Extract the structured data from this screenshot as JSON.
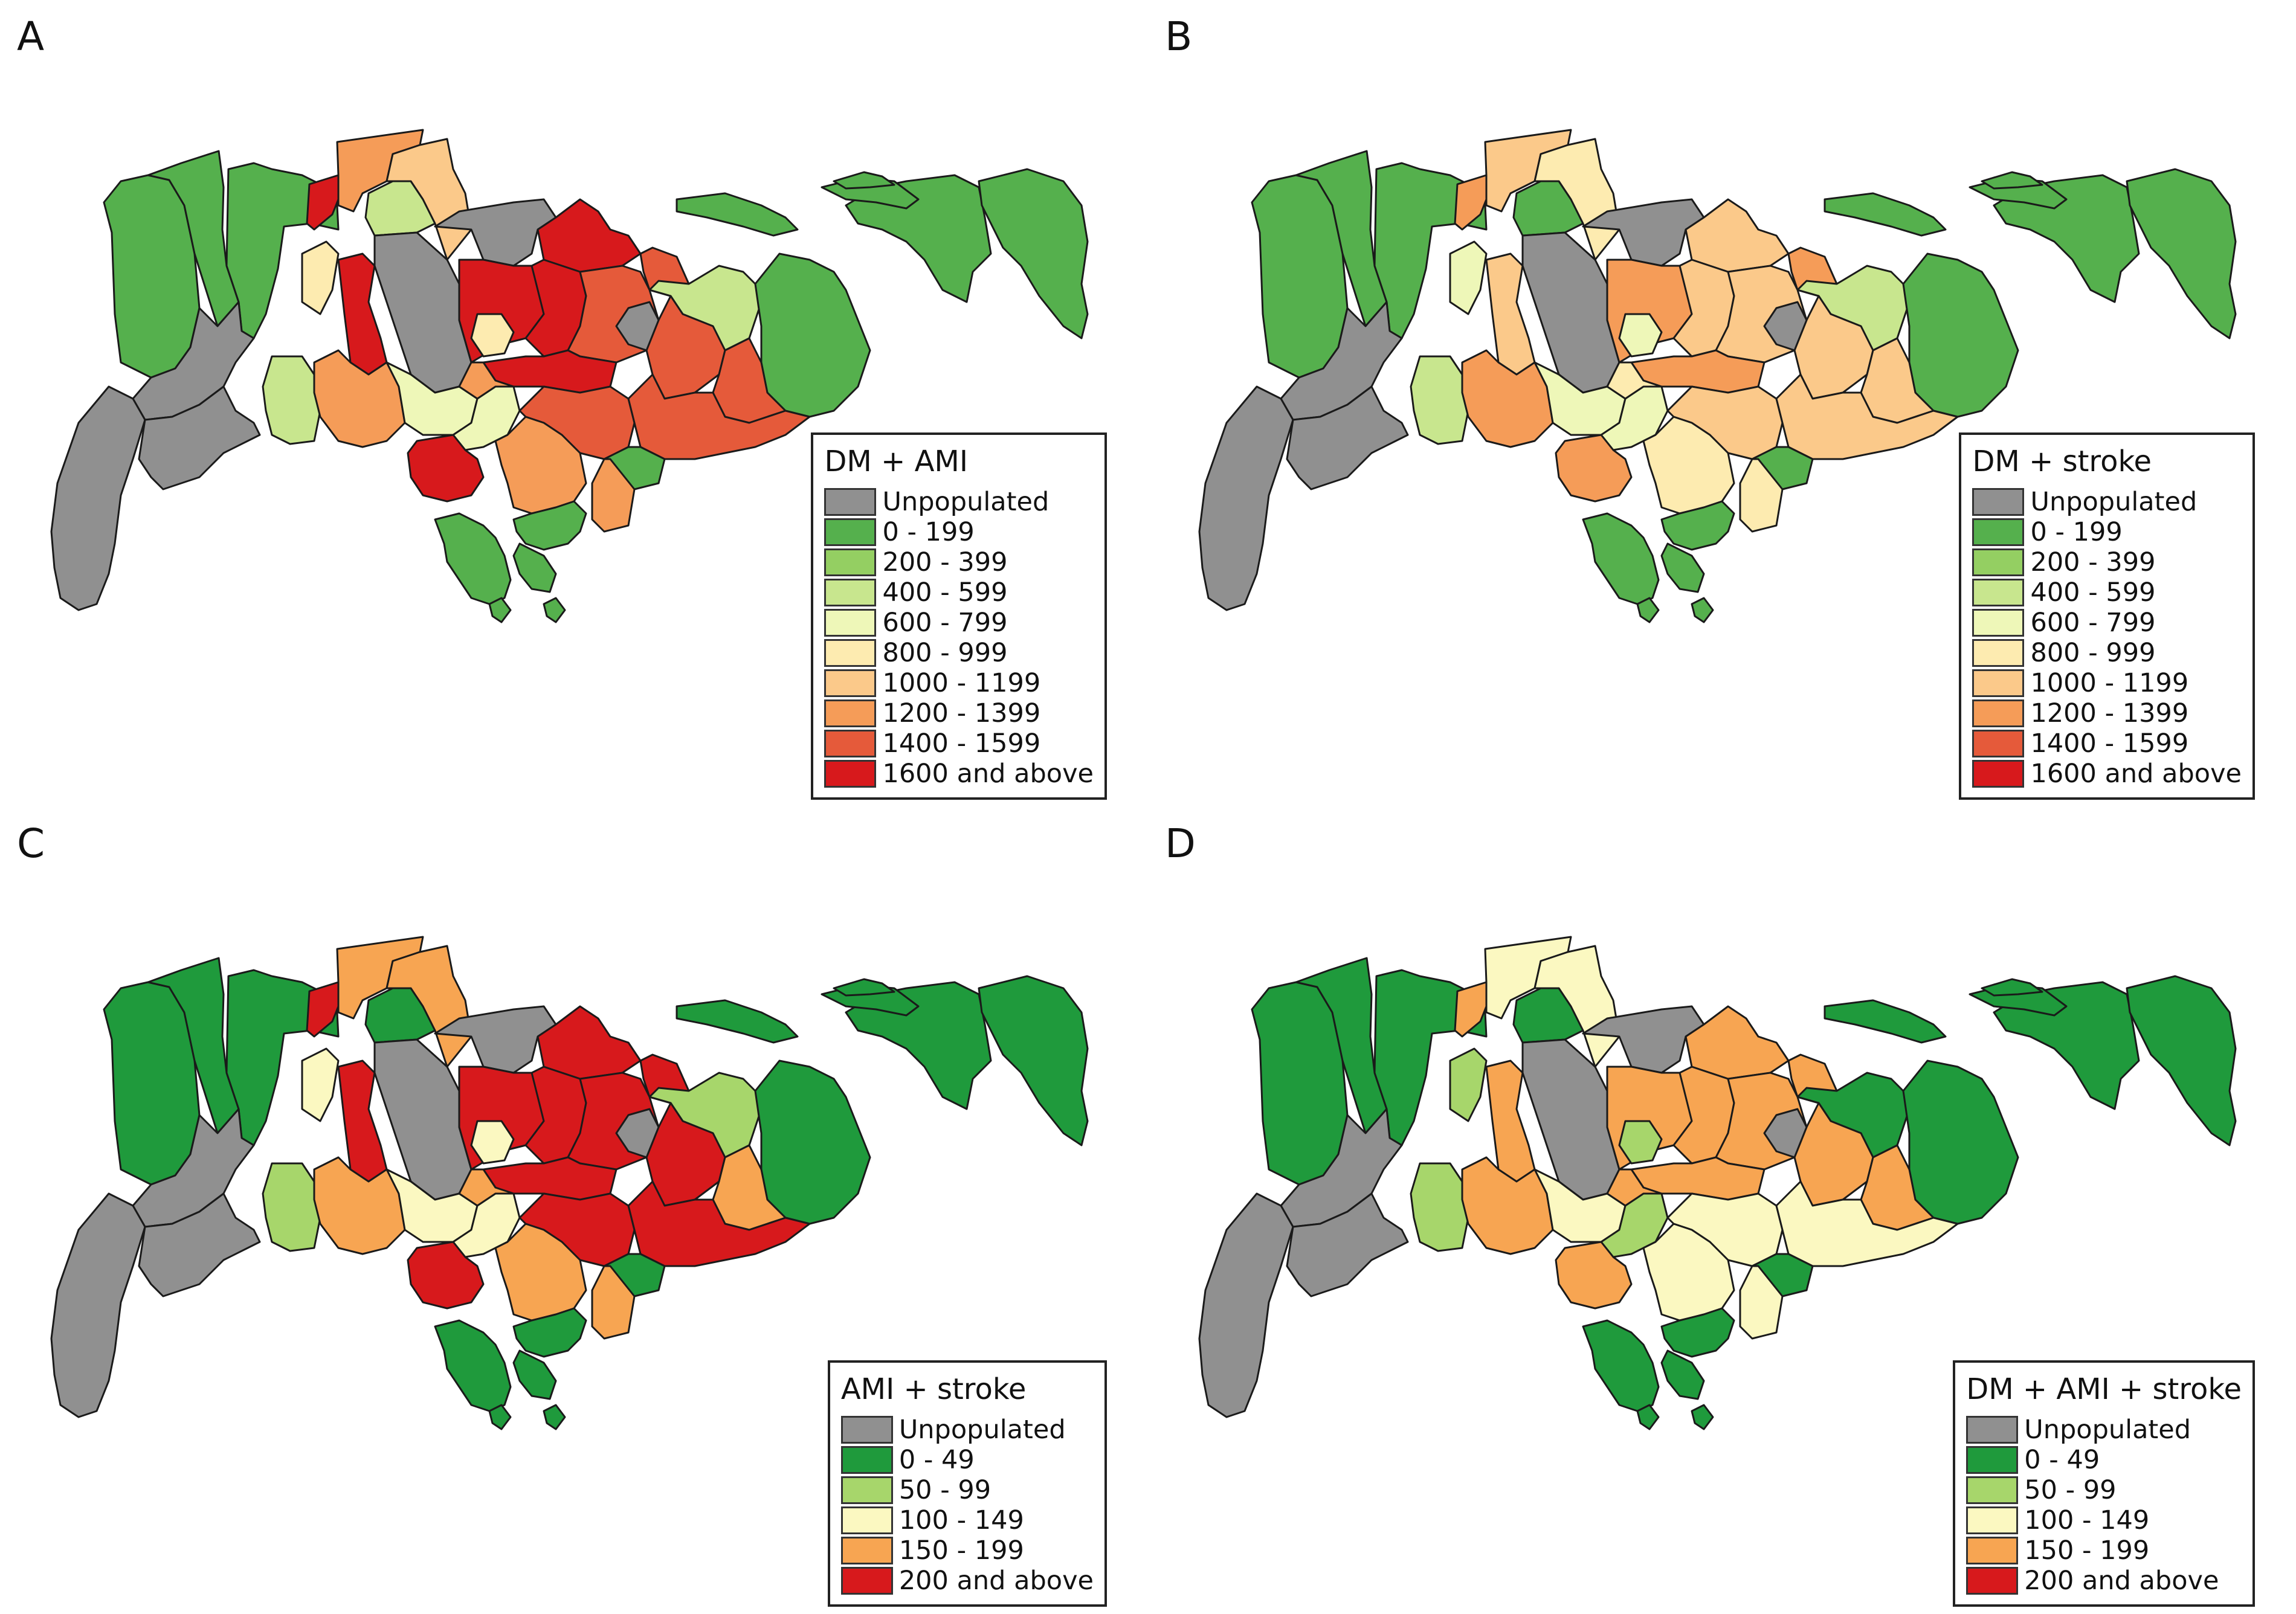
{
  "colors": {
    "unpopulated": "#909090",
    "green_dark": "#1f9a3c",
    "green": "#5cb552",
    "light_green": "#a7d66b",
    "pale_green": "#d4ecA1",
    "pale_yellow": "#fbf8c1",
    "light_orange": "#fbd08e",
    "orange": "#f5a25a",
    "red_orange": "#e65b38",
    "red": "#d7191c"
  },
  "panels": [
    {
      "label": "A",
      "legend_title": "DM + AMI",
      "legend_items": [
        {
          "label": "Unpopulated",
          "color": "#909090"
        },
        {
          "label": "0 - 199",
          "color": "#55b04d"
        },
        {
          "label": "200 - 399",
          "color": "#94cf62"
        },
        {
          "label": "400 - 599",
          "color": "#c8e68e"
        },
        {
          "label": "600 - 799",
          "color": "#eef7b8"
        },
        {
          "label": "800 - 999",
          "color": "#fdebb0"
        },
        {
          "label": "1000 - 1199",
          "color": "#fbc98a"
        },
        {
          "label": "1200 - 1399",
          "color": "#f59c58"
        },
        {
          "label": "1400 - 1599",
          "color": "#e55a3a"
        },
        {
          "label": "1600 and above",
          "color": "#d7191c"
        }
      ],
      "region_classes": [
        "0 - 199",
        "0 - 199",
        "0 - 199",
        "Unpopulated",
        "1600 and above",
        "1200 - 1399",
        "400 - 599",
        "1000 - 1199",
        "Unpopulated",
        "1600 and above",
        "1400 - 1599",
        "400 - 599",
        "0 - 199",
        "0 - 199",
        "800 - 999",
        "1600 and above",
        "Unpopulated",
        "1600 and above",
        "1600 and above",
        "1400 - 1599",
        "1400 - 1599",
        "Unpopulated",
        "1400 - 1599",
        "800 - 999",
        "1600 and above",
        "400 - 599",
        "1200 - 1399",
        "600 - 799",
        "600 - 799",
        "1200 - 1399",
        "1400 - 1599",
        "1400 - 1599",
        "0 - 199",
        "1200 - 1399",
        "1600 and above",
        "1200 - 1399",
        "0 - 199",
        "0 - 199",
        "Unpopulated",
        "Unpopulated"
      ]
    },
    {
      "label": "B",
      "legend_title": "DM + stroke",
      "legend_items": [
        {
          "label": "Unpopulated",
          "color": "#909090"
        },
        {
          "label": "0 - 199",
          "color": "#55b04d"
        },
        {
          "label": "200 - 399",
          "color": "#94cf62"
        },
        {
          "label": "400 - 599",
          "color": "#c8e68e"
        },
        {
          "label": "600 - 799",
          "color": "#eef7b8"
        },
        {
          "label": "800 - 999",
          "color": "#fdebb0"
        },
        {
          "label": "1000 - 1199",
          "color": "#fbc98a"
        },
        {
          "label": "1200 - 1399",
          "color": "#f59c58"
        },
        {
          "label": "1400 - 1599",
          "color": "#e55a3a"
        },
        {
          "label": "1600 and above",
          "color": "#d7191c"
        }
      ],
      "region_classes": [
        "0 - 199",
        "0 - 199",
        "0 - 199",
        "Unpopulated",
        "1200 - 1399",
        "1000 - 1199",
        "0 - 199",
        "800 - 999",
        "Unpopulated",
        "1000 - 1199",
        "1200 - 1399",
        "400 - 599",
        "0 - 199",
        "0 - 199",
        "600 - 799",
        "1000 - 1199",
        "Unpopulated",
        "1200 - 1399",
        "1000 - 1199",
        "1000 - 1199",
        "1000 - 1199",
        "Unpopulated",
        "1000 - 1199",
        "600 - 799",
        "1200 - 1399",
        "400 - 599",
        "1200 - 1399",
        "600 - 799",
        "600 - 799",
        "800 - 999",
        "1000 - 1199",
        "1000 - 1199",
        "0 - 199",
        "800 - 999",
        "1200 - 1399",
        "800 - 999",
        "0 - 199",
        "0 - 199",
        "Unpopulated",
        "Unpopulated"
      ]
    },
    {
      "label": "C",
      "legend_title": "AMI + stroke",
      "legend_items": [
        {
          "label": "Unpopulated",
          "color": "#909090"
        },
        {
          "label": "0 - 49",
          "color": "#1f9a3c"
        },
        {
          "label": "50 - 99",
          "color": "#a7d66b"
        },
        {
          "label": "100 - 149",
          "color": "#fbf8c1"
        },
        {
          "label": "150 - 199",
          "color": "#f7a552"
        },
        {
          "label": "200 and above",
          "color": "#d7191c"
        }
      ],
      "region_classes": [
        "0 - 49",
        "0 - 49",
        "0 - 49",
        "Unpopulated",
        "200 and above",
        "150 - 199",
        "0 - 49",
        "150 - 199",
        "Unpopulated",
        "200 and above",
        "200 and above",
        "50 - 99",
        "0 - 49",
        "0 - 49",
        "100 - 149",
        "200 and above",
        "Unpopulated",
        "200 and above",
        "200 and above",
        "200 and above",
        "200 and above",
        "Unpopulated",
        "150 - 199",
        "100 - 149",
        "200 and above",
        "50 - 99",
        "150 - 199",
        "100 - 149",
        "100 - 149",
        "150 - 199",
        "200 and above",
        "200 and above",
        "0 - 49",
        "150 - 199",
        "200 and above",
        "150 - 199",
        "0 - 49",
        "0 - 49",
        "Unpopulated",
        "Unpopulated"
      ]
    },
    {
      "label": "D",
      "legend_title": "DM + AMI + stroke",
      "legend_items": [
        {
          "label": "Unpopulated",
          "color": "#909090"
        },
        {
          "label": "0 - 49",
          "color": "#1f9a3c"
        },
        {
          "label": "50 - 99",
          "color": "#a7d66b"
        },
        {
          "label": "100 - 149",
          "color": "#fbf8c1"
        },
        {
          "label": "150 - 199",
          "color": "#f7a552"
        },
        {
          "label": "200 and above",
          "color": "#d7191c"
        }
      ],
      "region_classes": [
        "0 - 49",
        "0 - 49",
        "0 - 49",
        "Unpopulated",
        "150 - 199",
        "100 - 149",
        "0 - 49",
        "100 - 149",
        "Unpopulated",
        "150 - 199",
        "150 - 199",
        "0 - 49",
        "0 - 49",
        "0 - 49",
        "50 - 99",
        "150 - 199",
        "Unpopulated",
        "150 - 199",
        "150 - 199",
        "150 - 199",
        "150 - 199",
        "Unpopulated",
        "150 - 199",
        "50 - 99",
        "150 - 199",
        "50 - 99",
        "150 - 199",
        "100 - 149",
        "50 - 99",
        "150 - 199",
        "100 - 149",
        "100 - 149",
        "0 - 49",
        "100 - 149",
        "150 - 199",
        "100 - 149",
        "0 - 49",
        "0 - 49",
        "Unpopulated",
        "Unpopulated"
      ]
    }
  ]
}
